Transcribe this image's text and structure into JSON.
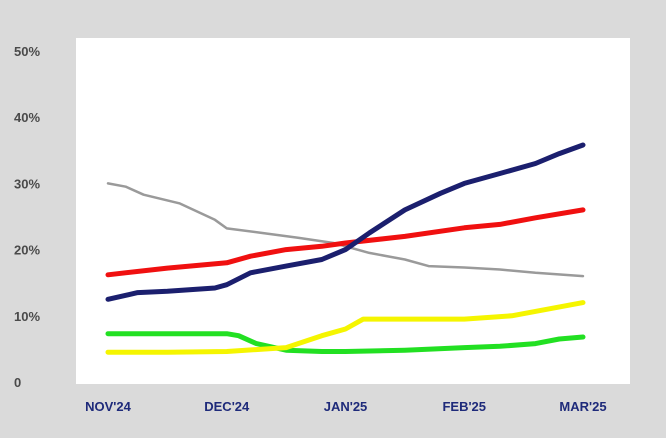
{
  "chart_data": {
    "type": "line",
    "title": "",
    "xlabel": "",
    "ylabel": "",
    "categories": [
      "NOV'24",
      "DEC'24",
      "JAN'25",
      "FEB'25",
      "MAR'25"
    ],
    "y_ticks": [
      "50%",
      "40%",
      "30%",
      "20%",
      "10%",
      "0"
    ],
    "y_tick_values": [
      50,
      40,
      30,
      20,
      10,
      0
    ],
    "ylim": [
      0,
      50
    ],
    "grid": false,
    "legend": "none",
    "series": [
      {
        "color": "#1b1f6e",
        "width": 5,
        "points": [
          [
            0,
            12.5
          ],
          [
            0.25,
            13.5
          ],
          [
            0.5,
            13.7
          ],
          [
            0.9,
            14.2
          ],
          [
            1.0,
            14.7
          ],
          [
            1.2,
            16.5
          ],
          [
            1.5,
            17.5
          ],
          [
            1.8,
            18.5
          ],
          [
            2.0,
            20.0
          ],
          [
            2.2,
            22.5
          ],
          [
            2.5,
            26.0
          ],
          [
            2.8,
            28.5
          ],
          [
            3.0,
            30.0
          ],
          [
            3.3,
            31.5
          ],
          [
            3.6,
            33.0
          ],
          [
            3.8,
            34.5
          ],
          [
            4.0,
            35.8
          ]
        ]
      },
      {
        "color": "#f01010",
        "width": 5,
        "points": [
          [
            0,
            16.2
          ],
          [
            0.5,
            17.2
          ],
          [
            1.0,
            18.0
          ],
          [
            1.2,
            19.0
          ],
          [
            1.5,
            20.0
          ],
          [
            1.8,
            20.5
          ],
          [
            2.0,
            21.0
          ],
          [
            2.5,
            22.0
          ],
          [
            3.0,
            23.3
          ],
          [
            3.3,
            23.8
          ],
          [
            3.6,
            24.8
          ],
          [
            4.0,
            26.0
          ]
        ]
      },
      {
        "color": "#9a9a9a",
        "width": 2.5,
        "points": [
          [
            0,
            30.0
          ],
          [
            0.15,
            29.5
          ],
          [
            0.3,
            28.3
          ],
          [
            0.6,
            27.0
          ],
          [
            0.9,
            24.5
          ],
          [
            1.0,
            23.2
          ],
          [
            1.3,
            22.5
          ],
          [
            1.6,
            21.8
          ],
          [
            1.9,
            21.0
          ],
          [
            2.2,
            19.5
          ],
          [
            2.5,
            18.5
          ],
          [
            2.7,
            17.5
          ],
          [
            3.0,
            17.3
          ],
          [
            3.3,
            17.0
          ],
          [
            3.6,
            16.5
          ],
          [
            4.0,
            16.0
          ]
        ]
      },
      {
        "color": "#f5f500",
        "width": 5,
        "points": [
          [
            0,
            4.5
          ],
          [
            0.5,
            4.5
          ],
          [
            1.0,
            4.6
          ],
          [
            1.5,
            5.2
          ],
          [
            1.8,
            7.0
          ],
          [
            2.0,
            8.0
          ],
          [
            2.15,
            9.5
          ],
          [
            2.5,
            9.5
          ],
          [
            3.0,
            9.5
          ],
          [
            3.4,
            10.0
          ],
          [
            3.7,
            11.0
          ],
          [
            4.0,
            12.0
          ]
        ]
      },
      {
        "color": "#22e022",
        "width": 5,
        "points": [
          [
            0,
            7.3
          ],
          [
            0.5,
            7.3
          ],
          [
            1.0,
            7.3
          ],
          [
            1.1,
            7.0
          ],
          [
            1.25,
            5.8
          ],
          [
            1.5,
            4.8
          ],
          [
            1.8,
            4.6
          ],
          [
            2.0,
            4.6
          ],
          [
            2.5,
            4.8
          ],
          [
            3.0,
            5.2
          ],
          [
            3.3,
            5.4
          ],
          [
            3.6,
            5.8
          ],
          [
            3.8,
            6.5
          ],
          [
            4.0,
            6.8
          ]
        ]
      }
    ]
  }
}
